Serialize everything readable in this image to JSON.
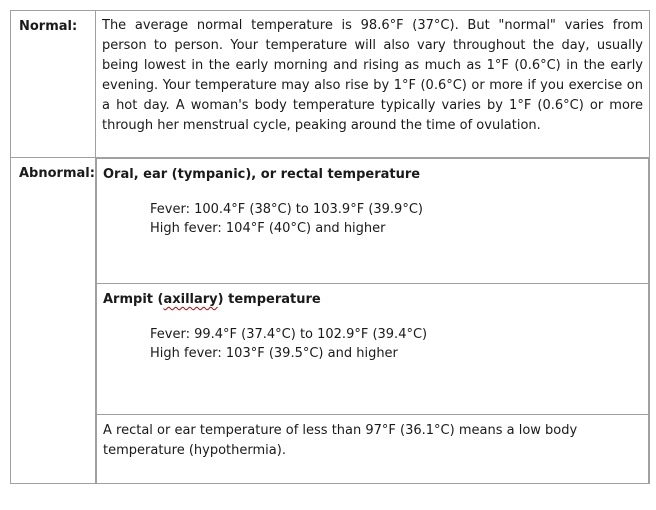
{
  "normal": {
    "label": "Normal:",
    "text": "The average normal temperature is 98.6°F (37°C). But \"normal\" varies from person to person. Your temperature will also vary throughout the day, usually being lowest in the early morning and rising as much as 1°F (0.6°C) in the early evening. Your temperature may also rise by 1°F (0.6°C) or more if you exercise on a hot day. A woman's body temperature typically varies by 1°F (0.6°C) or more through her menstrual cycle, peaking around the time of ovulation."
  },
  "abnormal": {
    "label": "Abnormal:",
    "oral": {
      "heading": "Oral, ear (tympanic), or rectal temperature",
      "fever": "Fever: 100.4°F (38°C) to 103.9°F (39.9°C)",
      "high_fever": "High fever: 104°F (40°C) and higher"
    },
    "armpit": {
      "heading_prefix": "Armpit (",
      "heading_word": "axillary",
      "heading_suffix": ") temperature",
      "fever": "Fever: 99.4°F (37.4°C) to 102.9°F (39.4°C)",
      "high_fever": "High fever: 103°F (39.5°C) and higher"
    },
    "low_temperature_note": "A rectal or ear temperature of less than 97°F (36.1°C) means a low body temperature (hypothermia)."
  },
  "colors": {
    "border": "#a0a0a0",
    "text": "#1a1a1a",
    "spellcheck_underline": "#c00000"
  }
}
